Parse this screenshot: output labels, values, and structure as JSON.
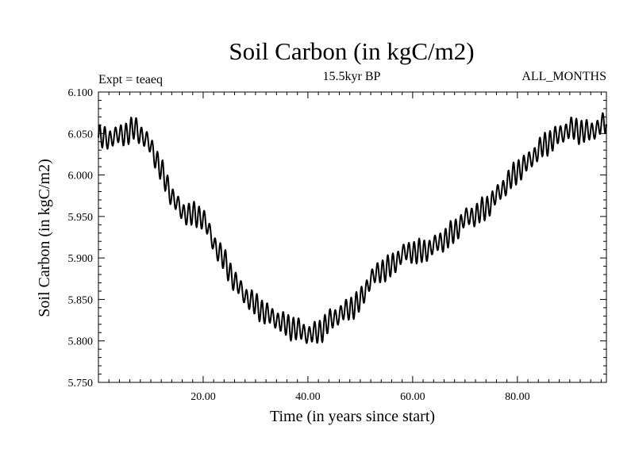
{
  "chart_data": {
    "type": "line",
    "title": "Soil Carbon (in kgC/m2)",
    "subtitle": "15.5kyr BP",
    "left_note": "Expt = teaeq",
    "right_note": "ALL_MONTHS",
    "xlabel": "Time (in years since start)",
    "ylabel": "Soil Carbon (in kgC/m2)",
    "xlim": [
      0,
      97
    ],
    "ylim": [
      5.75,
      6.1
    ],
    "x_ticks": [
      20,
      40,
      60,
      80
    ],
    "x_tick_labels": [
      "20.00",
      "40.00",
      "60.00",
      "80.00"
    ],
    "y_ticks": [
      5.75,
      5.8,
      5.85,
      5.9,
      5.95,
      6.0,
      6.05,
      6.1
    ],
    "y_tick_labels": [
      "5.750",
      "5.800",
      "5.850",
      "5.900",
      "5.950",
      "6.000",
      "6.050",
      "6.100"
    ],
    "grid": false,
    "series": [
      {
        "name": "Soil Carbon",
        "seasonal_amplitude": 0.012,
        "x": [
          0,
          2,
          4,
          6,
          7,
          8,
          10,
          12,
          14,
          16,
          18,
          20,
          22,
          24,
          26,
          28,
          30,
          32,
          34,
          36,
          38,
          40,
          42,
          44,
          46,
          48,
          50,
          52,
          54,
          56,
          58,
          60,
          62,
          64,
          66,
          68,
          70,
          72,
          74,
          76,
          78,
          80,
          82,
          84,
          86,
          88,
          90,
          92,
          94,
          96,
          97
        ],
        "values": [
          6.045,
          6.044,
          6.048,
          6.052,
          6.057,
          6.05,
          6.035,
          6.005,
          5.975,
          5.955,
          5.952,
          5.949,
          5.918,
          5.897,
          5.872,
          5.855,
          5.843,
          5.833,
          5.826,
          5.818,
          5.814,
          5.808,
          5.81,
          5.823,
          5.832,
          5.839,
          5.848,
          5.875,
          5.885,
          5.89,
          5.905,
          5.908,
          5.907,
          5.915,
          5.922,
          5.932,
          5.948,
          5.952,
          5.96,
          5.975,
          5.99,
          6.005,
          6.015,
          6.03,
          6.04,
          6.048,
          6.056,
          6.053,
          6.052,
          6.06,
          6.063
        ]
      }
    ]
  },
  "colors": {
    "line": "#000000",
    "frame": "#000000",
    "background": "#ffffff"
  }
}
